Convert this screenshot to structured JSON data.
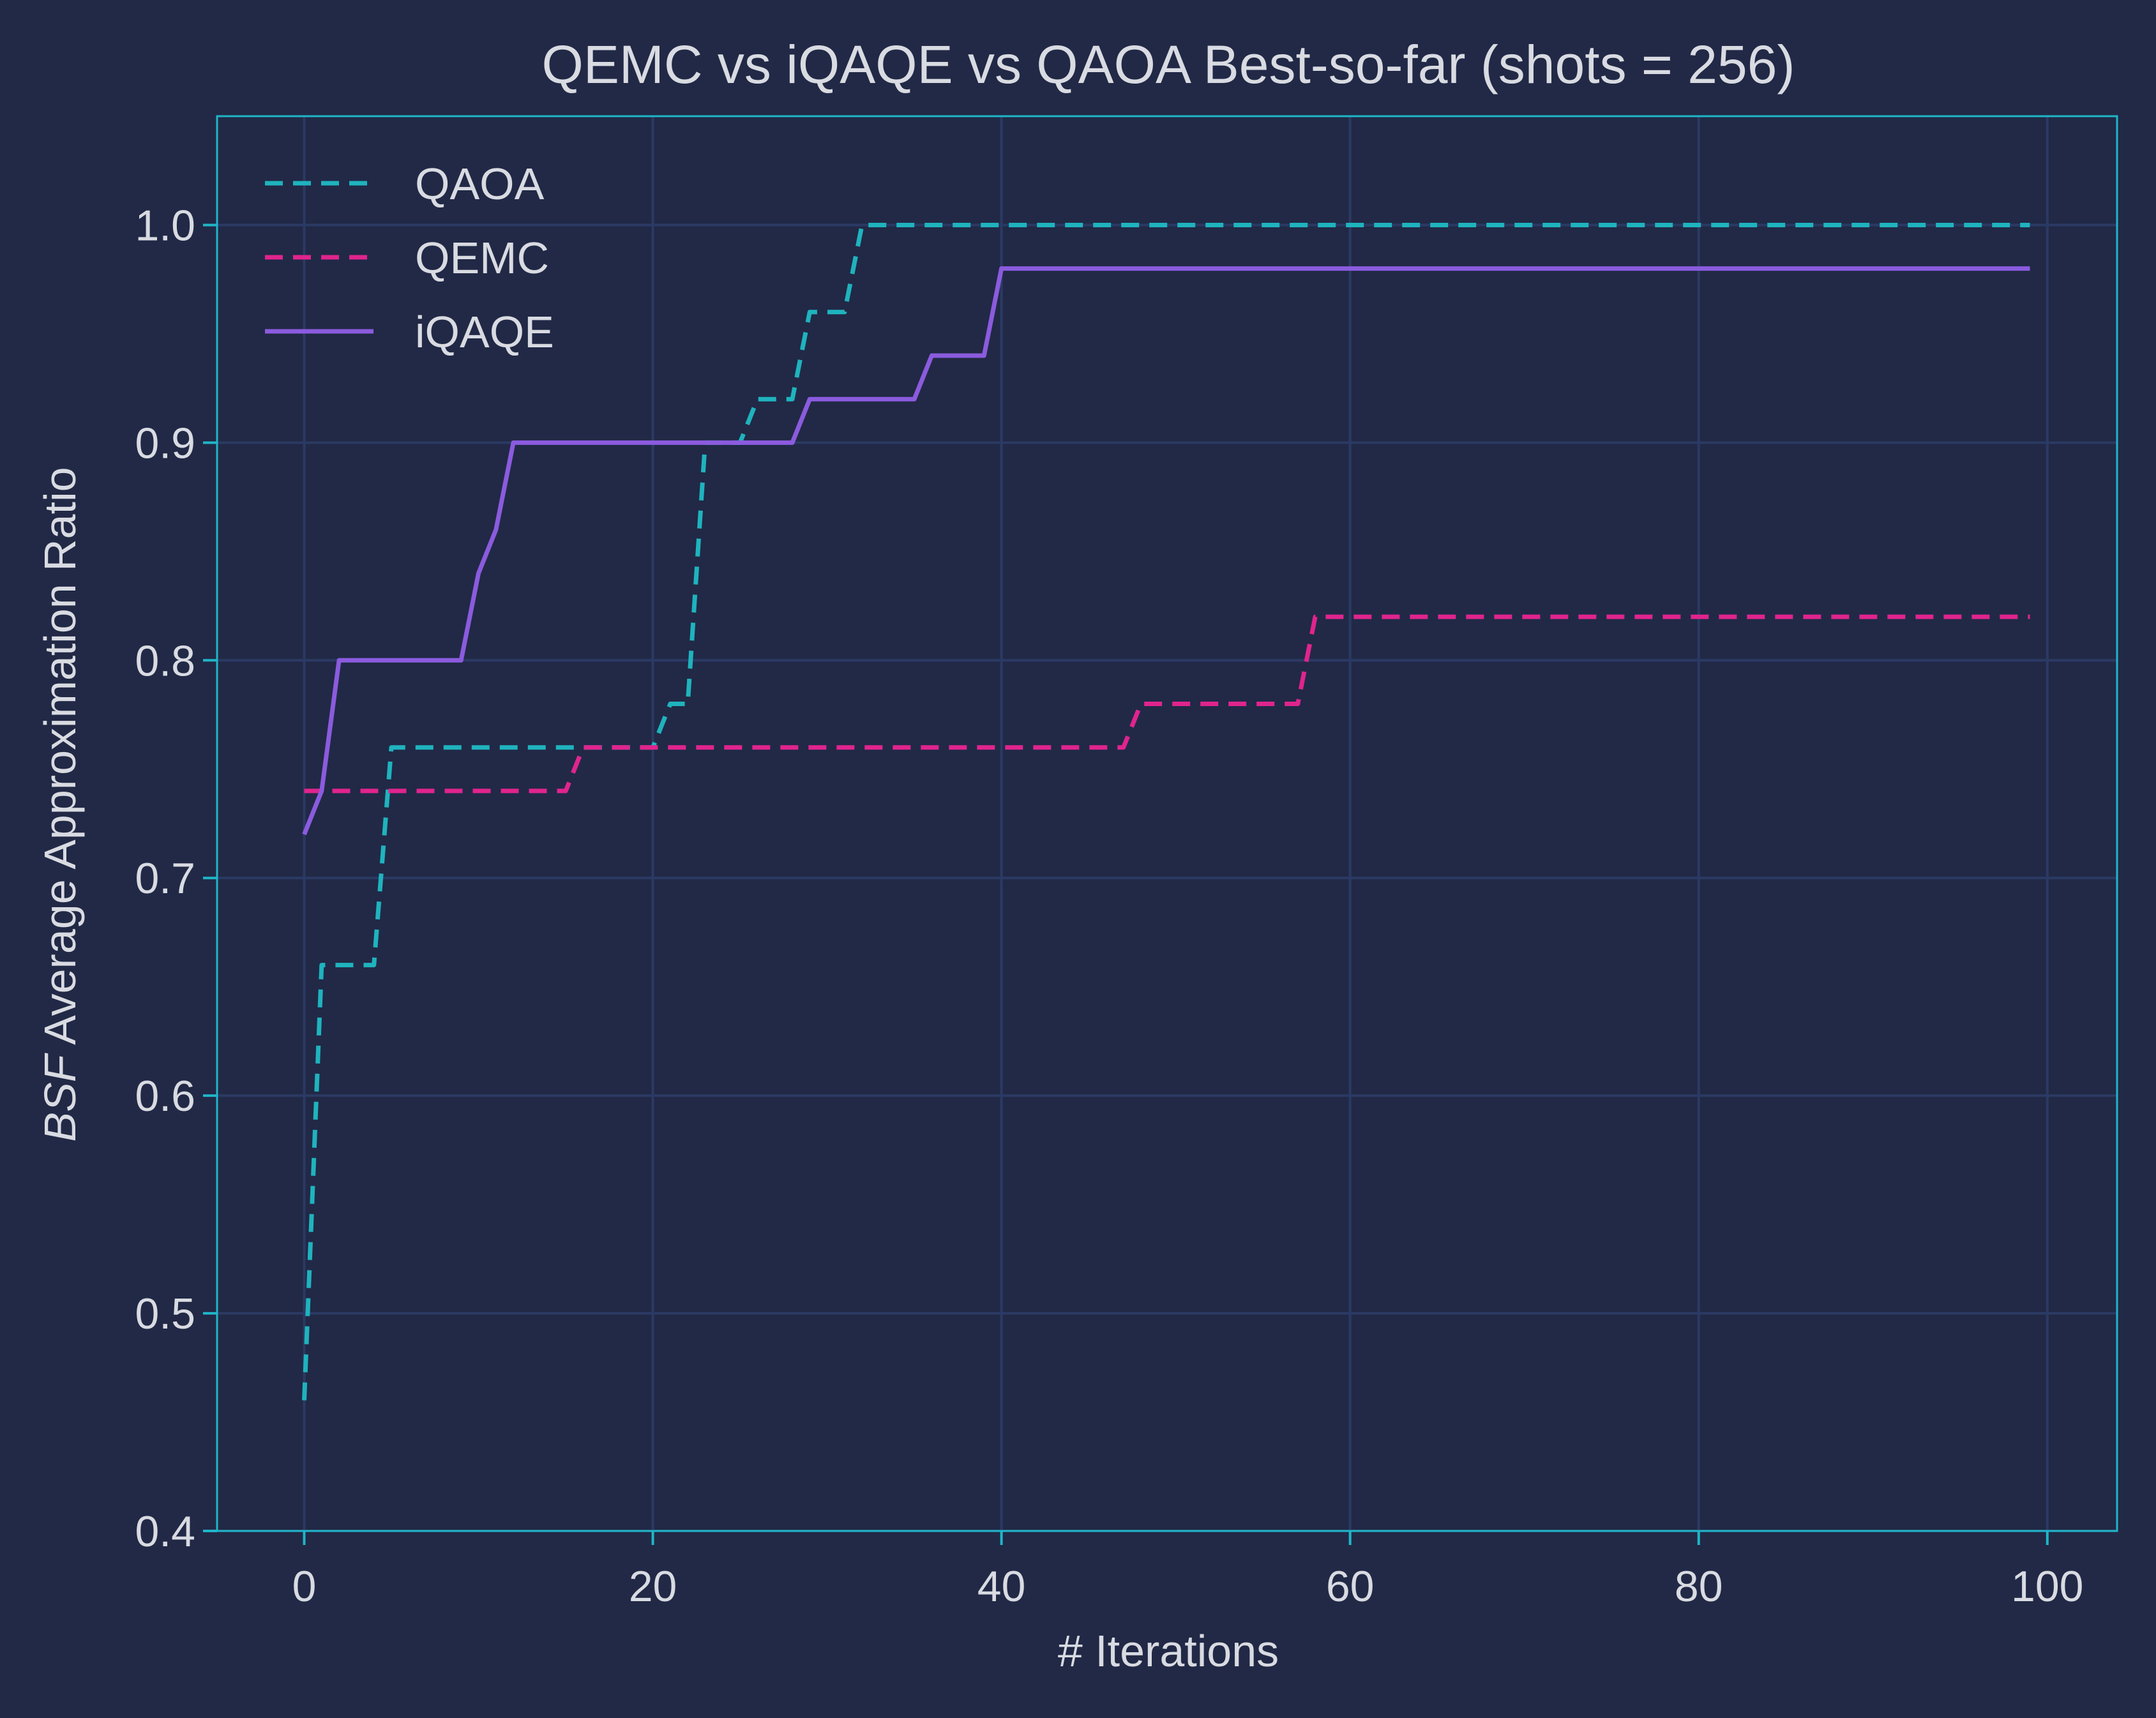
{
  "chart_data": {
    "type": "line",
    "title": "QEMC vs iQAQE vs QAOA Best-so-far (shots = 256)",
    "xlabel": "# Iterations",
    "ylabel_italic": "BSF",
    "ylabel": " Average Approximation Ratio",
    "xlim": [
      -5,
      104
    ],
    "ylim": [
      0.4,
      1.05
    ],
    "xticks": [
      0,
      20,
      40,
      60,
      80,
      100
    ],
    "yticks": [
      0.4,
      0.5,
      0.6,
      0.7,
      0.8,
      0.9,
      1.0
    ],
    "xtick_labels": [
      "0",
      "20",
      "40",
      "60",
      "80",
      "100"
    ],
    "ytick_labels": [
      "0.4",
      "0.5",
      "0.6",
      "0.7",
      "0.8",
      "0.9",
      "1.0"
    ],
    "grid": true,
    "legend_position": "top-left",
    "colors": {
      "background": "#212946",
      "grid": "#2b3a64",
      "frame": "#1fb6c8",
      "text": "#d9dbe2"
    },
    "series": [
      {
        "name": "QAOA",
        "color": "#1fb3be",
        "dash": "dashed",
        "points": [
          [
            0,
            0.46
          ],
          [
            1,
            0.66
          ],
          [
            4,
            0.66
          ],
          [
            5,
            0.76
          ],
          [
            20,
            0.76
          ],
          [
            21,
            0.78
          ],
          [
            22,
            0.78
          ],
          [
            23,
            0.9
          ],
          [
            25,
            0.9
          ],
          [
            26,
            0.92
          ],
          [
            28,
            0.92
          ],
          [
            29,
            0.96
          ],
          [
            31,
            0.96
          ],
          [
            32,
            1.0
          ],
          [
            99,
            1.0
          ]
        ]
      },
      {
        "name": "QEMC",
        "color": "#e0248e",
        "dash": "dashed",
        "points": [
          [
            0,
            0.74
          ],
          [
            15,
            0.74
          ],
          [
            16,
            0.76
          ],
          [
            47,
            0.76
          ],
          [
            48,
            0.78
          ],
          [
            57,
            0.78
          ],
          [
            58,
            0.82
          ],
          [
            99,
            0.82
          ]
        ]
      },
      {
        "name": "iQAQE",
        "color": "#8b5bde",
        "dash": "solid",
        "points": [
          [
            0,
            0.72
          ],
          [
            1,
            0.74
          ],
          [
            2,
            0.8
          ],
          [
            9,
            0.8
          ],
          [
            10,
            0.84
          ],
          [
            11,
            0.86
          ],
          [
            12,
            0.9
          ],
          [
            28,
            0.9
          ],
          [
            29,
            0.92
          ],
          [
            35,
            0.92
          ],
          [
            36,
            0.94
          ],
          [
            39,
            0.94
          ],
          [
            40,
            0.98
          ],
          [
            99,
            0.98
          ]
        ]
      }
    ]
  }
}
